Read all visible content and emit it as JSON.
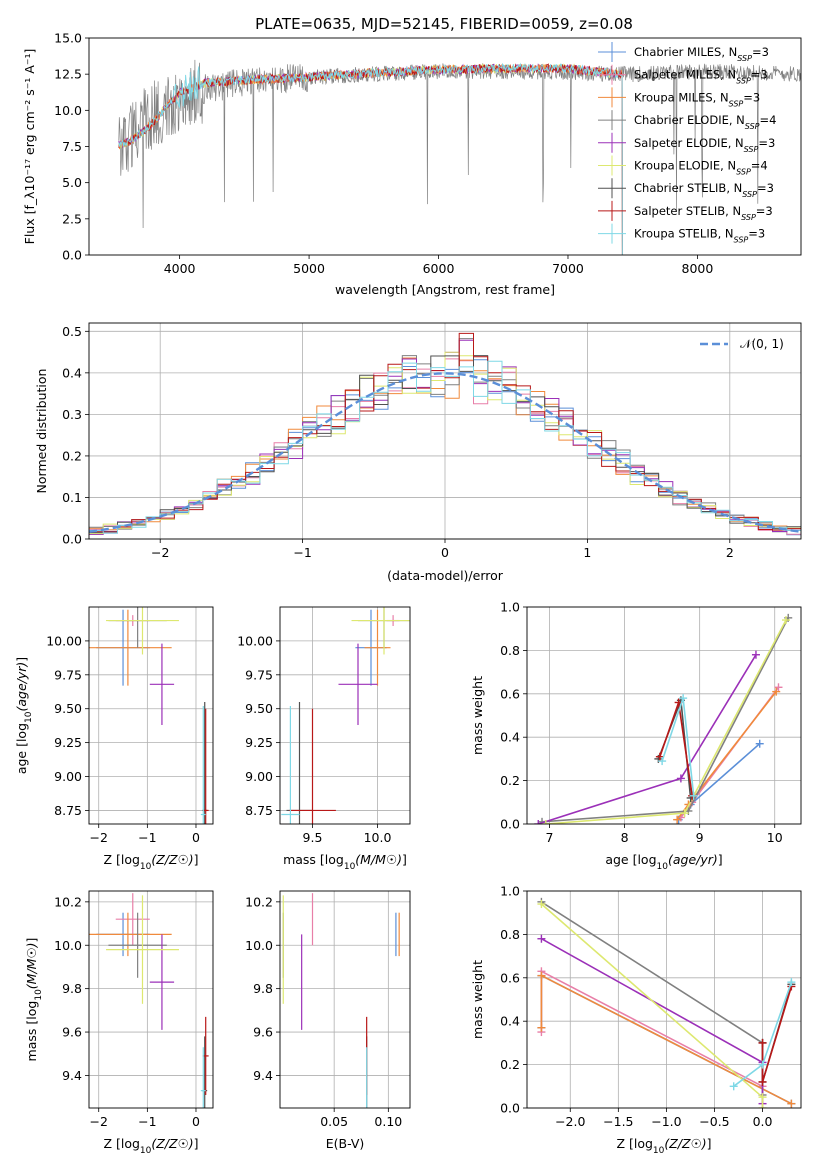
{
  "colors": {
    "chabrier_miles": "#5b8fd8",
    "salpeter_miles": "#e87fa8",
    "kroupa_miles": "#f08a3c",
    "chabrier_elodie": "#808080",
    "salpeter_elodie": "#9b30b8",
    "kroupa_elodie": "#dde870",
    "chabrier_stelib": "#505050",
    "salpeter_stelib": "#b81818",
    "kroupa_stelib": "#7fd8e6",
    "green_model": "#90c030"
  },
  "chart_data": [
    {
      "id": "spectrum",
      "type": "line",
      "title": "PLATE=0635, MJD=52145, FIBERID=0059, z=0.08",
      "xlabel": "wavelength [Angstrom, rest frame]",
      "ylabel": "Flux [f_λ 10^-17 erg cm^-2 s^-1 A^-1]",
      "xlim": [
        3300,
        8800
      ],
      "ylim": [
        0,
        15
      ],
      "xticks": [
        4000,
        5000,
        6000,
        7000,
        8000
      ],
      "yticks": [
        "0.0",
        "2.5",
        "5.0",
        "7.5",
        "10.0",
        "12.5",
        "15.0"
      ],
      "grid": false,
      "legend_position": "top-right",
      "legend": [
        {
          "key": "chabrier_miles",
          "label": "Chabrier MILES, N",
          "sub": "SSP",
          "eq": "=3"
        },
        {
          "key": "salpeter_miles",
          "label": "Salpeter MILES, N",
          "sub": "SSP",
          "eq": "=3"
        },
        {
          "key": "kroupa_miles",
          "label": "Kroupa MILES, N",
          "sub": "SSP",
          "eq": "=3"
        },
        {
          "key": "chabrier_elodie",
          "label": "Chabrier ELODIE, N",
          "sub": "SSP",
          "eq": "=4"
        },
        {
          "key": "salpeter_elodie",
          "label": "Salpeter ELODIE, N",
          "sub": "SSP",
          "eq": "=3"
        },
        {
          "key": "kroupa_elodie",
          "label": "Kroupa ELODIE, N",
          "sub": "SSP",
          "eq": "=4"
        },
        {
          "key": "chabrier_stelib",
          "label": "Chabrier STELIB, N",
          "sub": "SSP",
          "eq": "=3"
        },
        {
          "key": "salpeter_stelib",
          "label": "Salpeter STELIB, N",
          "sub": "SSP",
          "eq": "=3"
        },
        {
          "key": "kroupa_stelib",
          "label": "Kroupa STELIB, N",
          "sub": "SSP",
          "eq": "=3"
        }
      ],
      "model_envelope": {
        "x": [
          3530,
          3600,
          3700,
          3800,
          3900,
          4000,
          4200,
          4500,
          5000,
          5500,
          6000,
          6500,
          7000,
          7400
        ],
        "y": [
          7.6,
          7.8,
          8.4,
          9.2,
          10.3,
          11.2,
          11.9,
          12.1,
          12.3,
          12.6,
          12.8,
          12.9,
          12.9,
          12.5
        ]
      },
      "data_envelope": {
        "x": [
          3530,
          3700,
          4000,
          4500,
          5000,
          5500,
          6000,
          6500,
          7000,
          7500,
          8000,
          8500,
          8800
        ],
        "y": [
          7.5,
          9.0,
          11.0,
          12.0,
          12.3,
          12.5,
          12.7,
          12.7,
          12.6,
          12.5,
          12.7,
          12.6,
          12.5
        ]
      }
    },
    {
      "id": "residuals",
      "type": "histogram",
      "xlabel": "(data-model)/error",
      "ylabel": "Normed distribution",
      "xlim": [
        -2.5,
        2.5
      ],
      "ylim": [
        0,
        0.52
      ],
      "xticks": [
        "−2",
        "−1",
        "0",
        "1",
        "2"
      ],
      "yticks": [
        "0.0",
        "0.1",
        "0.2",
        "0.3",
        "0.4",
        "0.5"
      ],
      "grid": true,
      "legend_label": "𝒩(0, 1)",
      "bin_width": 0.1
    },
    {
      "id": "age_vs_Z",
      "type": "scatter",
      "xlabel": "Z [log10(Z/Z☉)]",
      "ylabel": "age  [log10(age/yr)]",
      "xlim": [
        -2.2,
        0.35
      ],
      "ylim": [
        8.65,
        10.25
      ],
      "xticks": [
        "−2",
        "−1",
        "0"
      ],
      "yticks": [
        "8.75",
        "9.00",
        "9.25",
        "9.50",
        "9.75",
        "10.00"
      ],
      "grid": true
    },
    {
      "id": "age_vs_mass",
      "type": "scatter",
      "xlabel": "mass [log10(M/M☉)]",
      "ylabel": "",
      "xlim": [
        9.25,
        10.25
      ],
      "ylim": [
        8.65,
        10.25
      ],
      "xticks": [
        "9.5",
        "10.0"
      ],
      "yticks": [
        "8.75",
        "9.00",
        "9.25",
        "9.50",
        "9.75",
        "10.00"
      ],
      "grid": true
    },
    {
      "id": "weight_vs_age",
      "type": "line",
      "xlabel": "age  [log10(age/yr)]",
      "ylabel": "mass weight",
      "xlim": [
        6.7,
        10.35
      ],
      "ylim": [
        0,
        1.0
      ],
      "xticks": [
        "7",
        "8",
        "9",
        "10"
      ],
      "yticks": [
        "0.0",
        "0.2",
        "0.4",
        "0.6",
        "0.8",
        "1.0"
      ],
      "grid": true,
      "series": [
        {
          "key": "chabrier_miles",
          "x": [
            8.72,
            8.88,
            9.8
          ],
          "y": [
            0.02,
            0.09,
            0.37
          ]
        },
        {
          "key": "salpeter_miles",
          "x": [
            8.75,
            8.9,
            10.05
          ],
          "y": [
            0.03,
            0.1,
            0.63
          ]
        },
        {
          "key": "kroupa_miles",
          "x": [
            8.7,
            8.85,
            10.02
          ],
          "y": [
            0.02,
            0.09,
            0.61
          ]
        },
        {
          "key": "chabrier_elodie",
          "x": [
            6.9,
            8.85,
            10.18
          ],
          "y": [
            0.01,
            0.06,
            0.95
          ]
        },
        {
          "key": "salpeter_elodie",
          "x": [
            6.85,
            8.75,
            9.75
          ],
          "y": [
            0.0,
            0.21,
            0.78
          ]
        },
        {
          "key": "kroupa_elodie",
          "x": [
            6.95,
            8.8,
            10.15
          ],
          "y": [
            0.0,
            0.05,
            0.94
          ]
        },
        {
          "key": "chabrier_stelib",
          "x": [
            8.45,
            8.75,
            8.88
          ],
          "y": [
            0.3,
            0.57,
            0.12
          ]
        },
        {
          "key": "salpeter_stelib",
          "x": [
            8.47,
            8.72,
            8.9
          ],
          "y": [
            0.31,
            0.56,
            0.13
          ]
        },
        {
          "key": "kroupa_stelib",
          "x": [
            8.5,
            8.78,
            8.92
          ],
          "y": [
            0.29,
            0.58,
            0.13
          ]
        }
      ]
    },
    {
      "id": "mass_vs_Z",
      "type": "scatter",
      "xlabel": "Z [log10(Z/Z☉)]",
      "ylabel": "mass [log10(M/M☉)]",
      "xlim": [
        -2.2,
        0.35
      ],
      "ylim": [
        9.25,
        10.25
      ],
      "xticks": [
        "−2",
        "−1",
        "0"
      ],
      "yticks": [
        "9.4",
        "9.6",
        "9.8",
        "10.0",
        "10.2"
      ],
      "grid": true
    },
    {
      "id": "mass_vs_ebv",
      "type": "scatter",
      "xlabel": "E(B-V)",
      "ylabel": "",
      "xlim": [
        0.0,
        0.12
      ],
      "ylim": [
        9.25,
        10.25
      ],
      "xticks": [
        "0.05",
        "0.10"
      ],
      "yticks": [
        "9.4",
        "9.6",
        "9.8",
        "10.0",
        "10.2"
      ],
      "grid": true
    },
    {
      "id": "weight_vs_Z",
      "type": "line",
      "xlabel": "Z [log10(Z/Z☉)]",
      "ylabel": "mass weight",
      "xlim": [
        -2.45,
        0.4
      ],
      "ylim": [
        0,
        1.0
      ],
      "xticks": [
        "−2.0",
        "−1.5",
        "−1.0",
        "−0.5",
        "0.0"
      ],
      "yticks": [
        "0.0",
        "0.2",
        "0.4",
        "0.6",
        "0.8",
        "1.0"
      ],
      "grid": true,
      "series": [
        {
          "key": "chabrier_miles",
          "x": [
            -2.3,
            -2.3,
            0.3
          ],
          "y": [
            0.37,
            0.61,
            0.02
          ]
        },
        {
          "key": "salpeter_miles",
          "x": [
            -2.3,
            -2.3,
            0.0
          ],
          "y": [
            0.35,
            0.63,
            0.1
          ]
        },
        {
          "key": "kroupa_miles",
          "x": [
            -2.3,
            -2.3,
            0.3
          ],
          "y": [
            0.37,
            0.61,
            0.02
          ]
        },
        {
          "key": "chabrier_elodie",
          "x": [
            -2.3,
            0.0,
            0.0
          ],
          "y": [
            0.95,
            0.3,
            0.06
          ]
        },
        {
          "key": "salpeter_elodie",
          "x": [
            -2.3,
            0.0,
            0.0
          ],
          "y": [
            0.78,
            0.21,
            0.02
          ]
        },
        {
          "key": "kroupa_elodie",
          "x": [
            -2.3,
            0.0,
            0.0
          ],
          "y": [
            0.94,
            0.05,
            0.0
          ]
        },
        {
          "key": "chabrier_stelib",
          "x": [
            0.0,
            0.0,
            0.3
          ],
          "y": [
            0.3,
            0.12,
            0.57
          ]
        },
        {
          "key": "salpeter_stelib",
          "x": [
            0.0,
            0.0,
            0.3
          ],
          "y": [
            0.3,
            0.12,
            0.56
          ]
        },
        {
          "key": "kroupa_stelib",
          "x": [
            -0.3,
            0.0,
            0.3
          ],
          "y": [
            0.1,
            0.2,
            0.58
          ]
        }
      ]
    }
  ],
  "scatter_points": [
    {
      "key": "chabrier_miles",
      "Z": -1.5,
      "Zerr": 0.55,
      "age": 9.95,
      "ageerr": 0.28,
      "mass": 9.95,
      "masserr": 0.12,
      "m": 10.05,
      "merr": 0.1,
      "ebv": 0.107
    },
    {
      "key": "salpeter_miles",
      "Z": -1.3,
      "Zerr": 0.35,
      "age": 10.15,
      "ageerr": 0.04,
      "mass": 10.12,
      "masserr": 0.05,
      "m": 10.12,
      "merr": 0.12,
      "ebv": 0.03
    },
    {
      "key": "kroupa_miles",
      "Z": -1.4,
      "Zerr": 0.9,
      "age": 9.95,
      "ageerr": 0.28,
      "mass": 10.0,
      "masserr": 0.1,
      "m": 10.05,
      "merr": 0.1,
      "ebv": 0.11
    },
    {
      "key": "chabrier_elodie",
      "Z": -1.2,
      "Zerr": 0.6,
      "age": 10.15,
      "ageerr": 0.2,
      "mass": 10.05,
      "masserr": 0.2,
      "m": 10.0,
      "merr": 0.15,
      "ebv": 0.003
    },
    {
      "key": "salpeter_elodie",
      "Z": -0.7,
      "Zerr": 0.25,
      "age": 9.68,
      "ageerr": 0.3,
      "mass": 9.85,
      "masserr": 0.15,
      "m": 9.83,
      "merr": 0.22,
      "ebv": 0.02
    },
    {
      "key": "kroupa_elodie",
      "Z": -1.1,
      "Zerr": 0.75,
      "age": 10.15,
      "ageerr": 0.25,
      "mass": 10.05,
      "masserr": 0.25,
      "m": 9.98,
      "merr": 0.25,
      "ebv": 0.003
    },
    {
      "key": "chabrier_stelib",
      "Z": 0.18,
      "Zerr": 0.05,
      "age": 8.75,
      "ageerr": 0.8,
      "mass": 9.4,
      "masserr": 0.1,
      "m": 9.33,
      "merr": 0.25,
      "ebv": 0.08
    },
    {
      "key": "salpeter_stelib",
      "Z": 0.2,
      "Zerr": 0.06,
      "age": 8.75,
      "ageerr": 0.75,
      "mass": 9.5,
      "masserr": 0.18,
      "m": 9.49,
      "merr": 0.18,
      "ebv": 0.08
    },
    {
      "key": "kroupa_stelib",
      "Z": 0.15,
      "Zerr": 0.05,
      "age": 8.72,
      "ageerr": 0.8,
      "mass": 9.33,
      "masserr": 0.07,
      "m": 9.33,
      "merr": 0.2,
      "ebv": 0.08
    }
  ]
}
